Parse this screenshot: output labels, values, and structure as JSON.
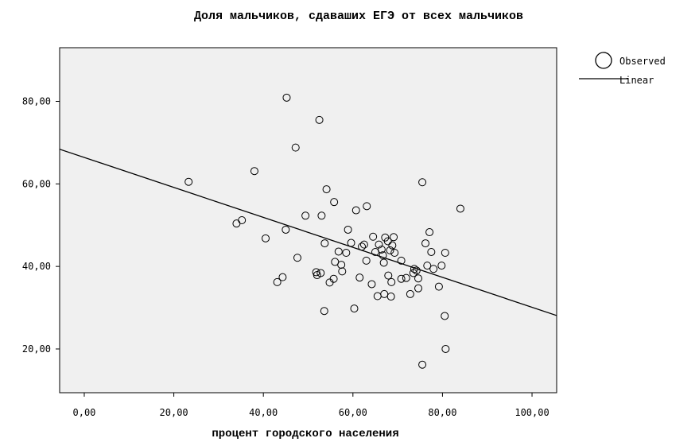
{
  "chart_data": {
    "type": "scatter",
    "title": "Доля мальчиков, сдаваших ЕГЭ от всех мальчиков",
    "xlabel": "процент городского населения",
    "ylabel": "",
    "xlim": [
      -5.5,
      105.5
    ],
    "ylim": [
      9.4,
      93
    ],
    "x_ticks": [
      "0,00",
      "20,00",
      "40,00",
      "60,00",
      "80,00",
      "100,00"
    ],
    "x_tick_values": [
      0,
      20,
      40,
      60,
      80,
      100
    ],
    "y_ticks": [
      "20,00",
      "40,00",
      "60,00",
      "80,00"
    ],
    "y_tick_values": [
      20,
      40,
      60,
      80
    ],
    "grid": false,
    "legend_position": "top-right",
    "plot_background": "#f0f0f0",
    "series": [
      {
        "name": "Observed",
        "marker": "open-circle",
        "points": [
          [
            23.3,
            60.5
          ],
          [
            34.0,
            50.4
          ],
          [
            35.2,
            51.2
          ],
          [
            38.0,
            63.1
          ],
          [
            40.5,
            46.8
          ],
          [
            43.1,
            36.2
          ],
          [
            44.3,
            37.4
          ],
          [
            45.0,
            48.9
          ],
          [
            45.2,
            80.9
          ],
          [
            47.2,
            68.8
          ],
          [
            47.6,
            42.1
          ],
          [
            49.4,
            52.3
          ],
          [
            51.8,
            38.6
          ],
          [
            52.0,
            37.9
          ],
          [
            52.5,
            75.5
          ],
          [
            52.8,
            38.4
          ],
          [
            53.0,
            52.3
          ],
          [
            53.6,
            29.2
          ],
          [
            53.7,
            45.6
          ],
          [
            54.1,
            58.7
          ],
          [
            54.8,
            36.1
          ],
          [
            55.8,
            55.6
          ],
          [
            55.7,
            37.0
          ],
          [
            56.0,
            41.1
          ],
          [
            56.8,
            43.6
          ],
          [
            57.4,
            40.4
          ],
          [
            57.6,
            38.8
          ],
          [
            58.5,
            43.3
          ],
          [
            58.9,
            48.9
          ],
          [
            59.6,
            45.7
          ],
          [
            60.3,
            29.8
          ],
          [
            60.7,
            53.6
          ],
          [
            61.5,
            37.3
          ],
          [
            62.0,
            44.8
          ],
          [
            62.5,
            45.3
          ],
          [
            63.0,
            41.4
          ],
          [
            63.1,
            54.6
          ],
          [
            64.2,
            35.7
          ],
          [
            64.5,
            47.2
          ],
          [
            65.0,
            43.5
          ],
          [
            65.5,
            32.8
          ],
          [
            65.8,
            45.3
          ],
          [
            66.4,
            44.1
          ],
          [
            66.7,
            42.7
          ],
          [
            66.9,
            40.9
          ],
          [
            67.0,
            33.3
          ],
          [
            67.2,
            47.0
          ],
          [
            67.8,
            46.1
          ],
          [
            67.9,
            37.8
          ],
          [
            68.3,
            43.9
          ],
          [
            68.5,
            32.7
          ],
          [
            68.6,
            36.2
          ],
          [
            68.8,
            45.1
          ],
          [
            69.1,
            47.1
          ],
          [
            69.3,
            43.3
          ],
          [
            70.8,
            41.4
          ],
          [
            70.8,
            37.0
          ],
          [
            71.9,
            37.2
          ],
          [
            72.8,
            33.3
          ],
          [
            73.5,
            38.4
          ],
          [
            73.7,
            39.4
          ],
          [
            74.2,
            39.0
          ],
          [
            74.6,
            37.1
          ],
          [
            74.6,
            34.7
          ],
          [
            75.5,
            60.4
          ],
          [
            75.5,
            16.2
          ],
          [
            76.2,
            45.6
          ],
          [
            76.6,
            40.2
          ],
          [
            77.1,
            48.3
          ],
          [
            77.5,
            43.5
          ],
          [
            78.0,
            39.4
          ],
          [
            79.2,
            35.1
          ],
          [
            79.8,
            40.2
          ],
          [
            80.5,
            28.0
          ],
          [
            80.6,
            43.3
          ],
          [
            80.7,
            20.0
          ],
          [
            84.0,
            54.0
          ]
        ]
      },
      {
        "name": "Linear",
        "type": "line",
        "points": [
          [
            -5.5,
            68.4
          ],
          [
            105.5,
            28.1
          ]
        ]
      }
    ]
  }
}
